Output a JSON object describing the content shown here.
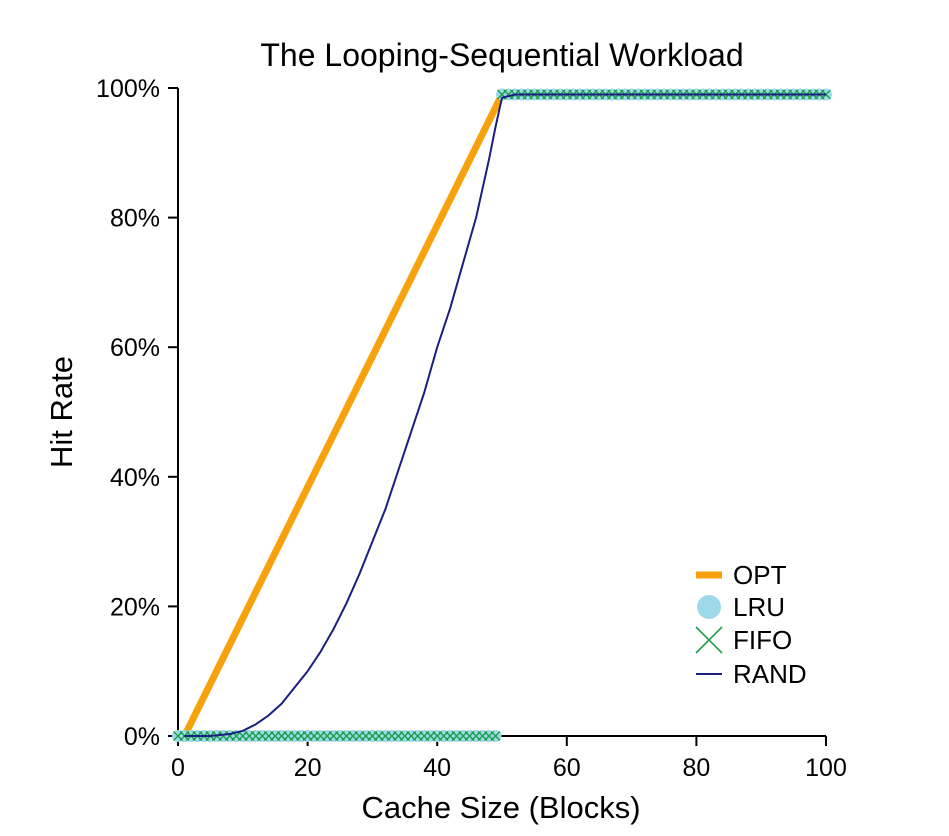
{
  "chart_data": {
    "type": "line",
    "title": "The Looping-Sequential Workload",
    "xlabel": "Cache Size (Blocks)",
    "ylabel": "Hit Rate",
    "xlim": [
      0,
      100
    ],
    "ylim": [
      0,
      100
    ],
    "xticks": [
      0,
      20,
      40,
      60,
      80,
      100
    ],
    "yticks": [
      0,
      20,
      40,
      60,
      80,
      100
    ],
    "xtick_labels": [
      "0",
      "20",
      "40",
      "60",
      "80",
      "100"
    ],
    "ytick_labels": [
      "0%",
      "20%",
      "40%",
      "60%",
      "80%",
      "100%"
    ],
    "grid": false,
    "legend_position": "lower-right",
    "series": [
      {
        "name": "OPT",
        "style": "thick-line",
        "color": "#f7a10c",
        "x": [
          1,
          50,
          100
        ],
        "y": [
          0,
          99,
          99
        ]
      },
      {
        "name": "LRU",
        "style": "circle-markers",
        "color": "#9dd9e8",
        "segments": [
          {
            "x_start": 0,
            "x_end": 49,
            "y": 0
          },
          {
            "x_start": 50,
            "x_end": 100,
            "y": 99
          }
        ]
      },
      {
        "name": "FIFO",
        "style": "x-markers",
        "color": "#1c9e4a",
        "segments": [
          {
            "x_start": 0,
            "x_end": 49,
            "y": 0
          },
          {
            "x_start": 50,
            "x_end": 100,
            "y": 99
          }
        ]
      },
      {
        "name": "RAND",
        "style": "thin-line",
        "color": "#1a1f80",
        "x": [
          1,
          5,
          8,
          10,
          12,
          14,
          16,
          18,
          20,
          22,
          24,
          26,
          28,
          30,
          32,
          34,
          36,
          38,
          40,
          42,
          44,
          46,
          48,
          49,
          50,
          52,
          100
        ],
        "y": [
          0,
          0,
          0.3,
          0.8,
          1.8,
          3.2,
          5,
          7.5,
          10,
          13,
          16.5,
          20.5,
          25,
          30,
          35,
          41,
          47,
          53,
          60,
          66,
          73,
          80,
          89,
          94,
          98.5,
          99,
          99
        ]
      }
    ]
  }
}
